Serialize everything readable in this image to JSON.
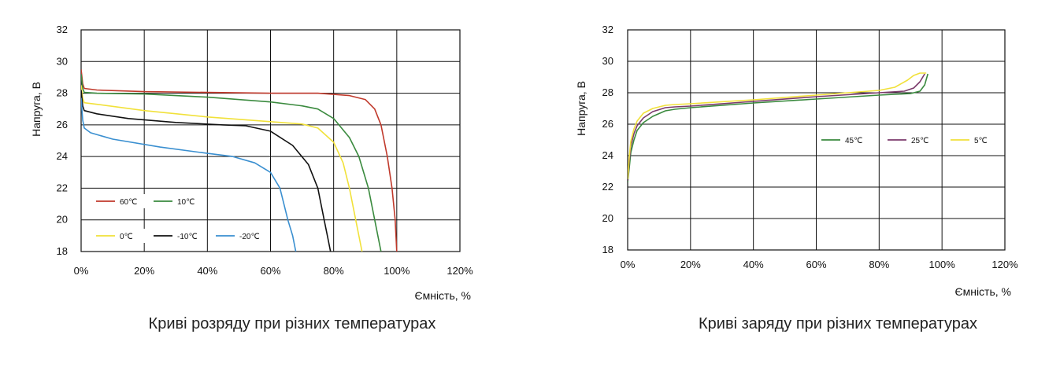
{
  "chart_data": [
    {
      "type": "line",
      "title": "Криві розряду при різних температурах",
      "xlabel": "Ємність, %",
      "ylabel": "Напруга, В",
      "xlim": [
        0,
        120
      ],
      "ylim": [
        18,
        32
      ],
      "xticks": [
        "0%",
        "20%",
        "40%",
        "60%",
        "80%",
        "100%",
        "120%"
      ],
      "yticks": [
        "18",
        "20",
        "22",
        "24",
        "26",
        "28",
        "30",
        "32"
      ],
      "grid": true,
      "legend_position": "bottom-left",
      "series": [
        {
          "name": "60℃",
          "color": "#c0392b",
          "points": [
            [
              0,
              29.5
            ],
            [
              0.5,
              28.6
            ],
            [
              1,
              28.3
            ],
            [
              5,
              28.2
            ],
            [
              20,
              28.1
            ],
            [
              40,
              28.05
            ],
            [
              60,
              28.0
            ],
            [
              75,
              28.0
            ],
            [
              85,
              27.85
            ],
            [
              90,
              27.6
            ],
            [
              93,
              27.0
            ],
            [
              95,
              26.0
            ],
            [
              97,
              24.0
            ],
            [
              98.5,
              22.0
            ],
            [
              99.5,
              20.0
            ],
            [
              100,
              18.0
            ]
          ]
        },
        {
          "name": "10℃",
          "color": "#3a8a3e",
          "points": [
            [
              0,
              29.2
            ],
            [
              0.5,
              28.3
            ],
            [
              1,
              28.05
            ],
            [
              5,
              28.0
            ],
            [
              20,
              27.95
            ],
            [
              40,
              27.75
            ],
            [
              60,
              27.45
            ],
            [
              70,
              27.2
            ],
            [
              75,
              27.0
            ],
            [
              80,
              26.4
            ],
            [
              85,
              25.2
            ],
            [
              88,
              24.0
            ],
            [
              91,
              22.0
            ],
            [
              93,
              20.0
            ],
            [
              94,
              19.0
            ],
            [
              95,
              18.0
            ]
          ]
        },
        {
          "name": "0℃",
          "color": "#f1e13a",
          "points": [
            [
              0,
              28.5
            ],
            [
              0.5,
              27.7
            ],
            [
              1,
              27.4
            ],
            [
              5,
              27.3
            ],
            [
              20,
              26.9
            ],
            [
              40,
              26.5
            ],
            [
              60,
              26.2
            ],
            [
              70,
              26.05
            ],
            [
              75,
              25.8
            ],
            [
              80,
              24.9
            ],
            [
              83,
              23.6
            ],
            [
              85,
              22.0
            ],
            [
              87,
              20.0
            ],
            [
              88,
              19.0
            ],
            [
              89,
              18.0
            ]
          ]
        },
        {
          "name": "-10℃",
          "color": "#111111",
          "points": [
            [
              0,
              28.2
            ],
            [
              0.5,
              27.2
            ],
            [
              1,
              26.9
            ],
            [
              5,
              26.7
            ],
            [
              15,
              26.4
            ],
            [
              30,
              26.15
            ],
            [
              45,
              26.0
            ],
            [
              52,
              25.95
            ],
            [
              60,
              25.6
            ],
            [
              67,
              24.7
            ],
            [
              72,
              23.5
            ],
            [
              75,
              22.0
            ],
            [
              77,
              20.0
            ],
            [
              78,
              19.0
            ],
            [
              79,
              18.0
            ]
          ]
        },
        {
          "name": "-20℃",
          "color": "#3a8fd0",
          "points": [
            [
              0,
              27.7
            ],
            [
              0.5,
              26.3
            ],
            [
              1,
              25.8
            ],
            [
              3,
              25.5
            ],
            [
              10,
              25.1
            ],
            [
              25,
              24.6
            ],
            [
              40,
              24.2
            ],
            [
              48,
              24.0
            ],
            [
              55,
              23.6
            ],
            [
              60,
              23.0
            ],
            [
              63,
              22.0
            ],
            [
              65.5,
              20.0
            ],
            [
              67,
              19.0
            ],
            [
              68,
              18.0
            ]
          ]
        }
      ]
    },
    {
      "type": "line",
      "title": "Криві заряду при різних температурах",
      "xlabel": "Ємність, %",
      "ylabel": "Напруга, В",
      "xlim": [
        0,
        120
      ],
      "ylim": [
        18,
        32
      ],
      "xticks": [
        "0%",
        "20%",
        "40%",
        "60%",
        "80%",
        "100%",
        "120%"
      ],
      "yticks": [
        "18",
        "20",
        "22",
        "24",
        "26",
        "28",
        "30",
        "32"
      ],
      "grid": true,
      "legend_position": "right-middle",
      "series": [
        {
          "name": "45℃",
          "color": "#3a8a3e",
          "points": [
            [
              0,
              22.3
            ],
            [
              0.5,
              23.2
            ],
            [
              1,
              24.2
            ],
            [
              2,
              25.0
            ],
            [
              3,
              25.6
            ],
            [
              5,
              26.1
            ],
            [
              8,
              26.5
            ],
            [
              12,
              26.85
            ],
            [
              15,
              26.95
            ],
            [
              20,
              27.05
            ],
            [
              40,
              27.35
            ],
            [
              60,
              27.6
            ],
            [
              80,
              27.85
            ],
            [
              90,
              27.95
            ],
            [
              93,
              28.1
            ],
            [
              94.5,
              28.5
            ],
            [
              95.5,
              29.2
            ]
          ]
        },
        {
          "name": "25℃",
          "color": "#7b3a6b",
          "points": [
            [
              0,
              22.4
            ],
            [
              0.5,
              23.6
            ],
            [
              1,
              24.6
            ],
            [
              2,
              25.4
            ],
            [
              3,
              25.9
            ],
            [
              5,
              26.4
            ],
            [
              8,
              26.8
            ],
            [
              12,
              27.05
            ],
            [
              15,
              27.1
            ],
            [
              20,
              27.15
            ],
            [
              40,
              27.45
            ],
            [
              60,
              27.75
            ],
            [
              80,
              28.0
            ],
            [
              88,
              28.1
            ],
            [
              91,
              28.3
            ],
            [
              93,
              28.7
            ],
            [
              94.5,
              29.2
            ]
          ]
        },
        {
          "name": "5℃",
          "color": "#f1e13a",
          "points": [
            [
              0,
              22.5
            ],
            [
              0.5,
              23.9
            ],
            [
              1,
              24.9
            ],
            [
              2,
              25.7
            ],
            [
              3,
              26.2
            ],
            [
              5,
              26.7
            ],
            [
              8,
              27.0
            ],
            [
              12,
              27.2
            ],
            [
              15,
              27.25
            ],
            [
              20,
              27.3
            ],
            [
              40,
              27.55
            ],
            [
              60,
              27.85
            ],
            [
              80,
              28.15
            ],
            [
              85,
              28.35
            ],
            [
              89,
              28.8
            ],
            [
              91,
              29.1
            ],
            [
              93,
              29.25
            ],
            [
              95,
              29.25
            ]
          ]
        }
      ]
    }
  ]
}
